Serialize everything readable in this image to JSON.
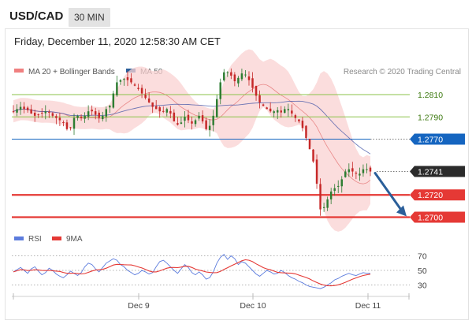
{
  "header": {
    "pair": "USD/CAD",
    "timeframe": "30 MIN"
  },
  "datetime": "Friday, December 11, 2020 12:58:30 AM CET",
  "legend": {
    "bollinger_label": "MA 20 + Bollinger Bands",
    "ma50_label": "MA 50",
    "rsi_label": "RSI",
    "ma9_label": "9MA"
  },
  "credit": "Research © 2020 Trading Central",
  "colors": {
    "candle_up": "#2e7d32",
    "candle_down": "#c62828",
    "bollinger_fill": "#f9d2d2",
    "ma20": "#e57373",
    "ma50": "#3f51a5",
    "resistance_green": "#8bc34a",
    "pivot_blue": "#1565c0",
    "support_red": "#e53935",
    "current_price_tag": "#2b2b2b",
    "forecast_arrow": "#2b5f9a",
    "rsi_line": "#5c7cdd",
    "ma9_line": "#e53935"
  },
  "chart_data": [
    {
      "type": "candlestick",
      "title": "USD/CAD 30 MIN",
      "x_ticks": [
        "Dec 9",
        "Dec 10",
        "Dec 11"
      ],
      "ylim": [
        1.2685,
        1.2862
      ],
      "price_series_approx": [
        1.2795,
        1.2797,
        1.2799,
        1.2797,
        1.2796,
        1.2793,
        1.2791,
        1.2792,
        1.2793,
        1.2795,
        1.2794,
        1.2791,
        1.2789,
        1.2787,
        1.2785,
        1.2779,
        1.278,
        1.2789,
        1.2791,
        1.2789,
        1.2791,
        1.2795,
        1.2795,
        1.2792,
        1.2789,
        1.2791,
        1.2797,
        1.28,
        1.2811,
        1.2821,
        1.2823,
        1.2824,
        1.2823,
        1.2821,
        1.2818,
        1.2815,
        1.2811,
        1.2807,
        1.2803,
        1.2799,
        1.2797,
        1.2795,
        1.2795,
        1.2797,
        1.2793,
        1.2786,
        1.2783,
        1.2785,
        1.279,
        1.2787,
        1.2784,
        1.2787,
        1.2791,
        1.2786,
        1.2779,
        1.2782,
        1.2791,
        1.2806,
        1.2821,
        1.283,
        1.283,
        1.2827,
        1.2822,
        1.2825,
        1.2829,
        1.2828,
        1.2823,
        1.2816,
        1.2809,
        1.2803,
        1.28,
        1.2797,
        1.2795,
        1.2795,
        1.2796,
        1.2794,
        1.2797,
        1.2797,
        1.2793,
        1.2789,
        1.2786,
        1.278,
        1.2771,
        1.2761,
        1.275,
        1.273,
        1.2707,
        1.2709,
        1.2716,
        1.2723,
        1.2726,
        1.2728,
        1.2734,
        1.2741,
        1.2743,
        1.2741,
        1.2739,
        1.2739,
        1.2743,
        1.2743,
        1.2741
      ],
      "levels": [
        {
          "value": 1.281,
          "label": "1.2810",
          "kind": "resistance"
        },
        {
          "value": 1.279,
          "label": "1.2790",
          "kind": "resistance"
        },
        {
          "value": 1.277,
          "label": "1.2770",
          "kind": "pivot"
        },
        {
          "value": 1.2741,
          "label": "1.2741",
          "kind": "current"
        },
        {
          "value": 1.272,
          "label": "1.2720",
          "kind": "support"
        },
        {
          "value": 1.27,
          "label": "1.2700",
          "kind": "support"
        }
      ],
      "series": [
        {
          "name": "MA 20 + Bollinger Bands"
        },
        {
          "name": "MA 50"
        }
      ],
      "forecast": {
        "from": 1.2741,
        "to": 1.27,
        "direction": "down"
      }
    },
    {
      "type": "line",
      "x_ticks": [
        "Dec 9",
        "Dec 10",
        "Dec 11"
      ],
      "ylim": [
        20,
        80
      ],
      "y_ticks": [
        70,
        50,
        30
      ],
      "series": [
        {
          "name": "RSI"
        },
        {
          "name": "9MA"
        }
      ],
      "rsi_approx": [
        48,
        51,
        54,
        50,
        46,
        52,
        55,
        49,
        44,
        47,
        53,
        50,
        45,
        42,
        40,
        44,
        49,
        46,
        43,
        47,
        55,
        60,
        58,
        52,
        48,
        54,
        60,
        63,
        66,
        64,
        58,
        55,
        50,
        47,
        44,
        46,
        50,
        48,
        45,
        47,
        55,
        62,
        64,
        60,
        55,
        50,
        46,
        52,
        58,
        54,
        47,
        44,
        48,
        44,
        38,
        40,
        48,
        60,
        68,
        72,
        65,
        70,
        66,
        58,
        62,
        60,
        55,
        50,
        45,
        42,
        46,
        50,
        48,
        45,
        46,
        50,
        47,
        43,
        40,
        38,
        35,
        33,
        30,
        28,
        27,
        26,
        25,
        27,
        30,
        33,
        37,
        39,
        42,
        44,
        46,
        44,
        43,
        45,
        47,
        46,
        46
      ]
    }
  ]
}
